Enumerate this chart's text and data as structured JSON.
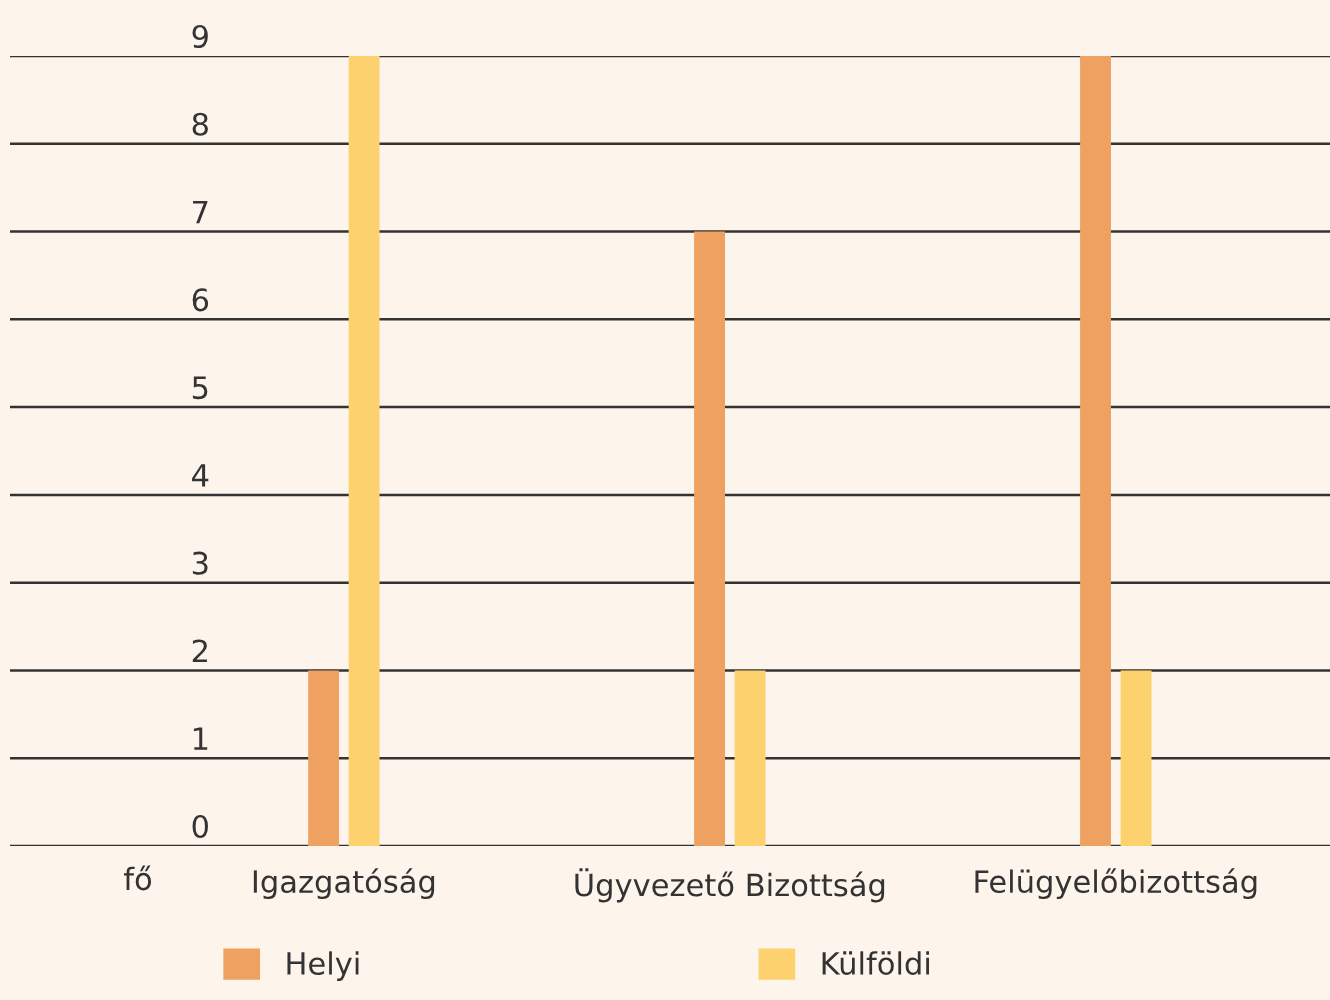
{
  "chart_data": {
    "type": "bar",
    "annotations": [
      "fő"
    ],
    "categories": [
      "Igazgatóság",
      "Ügyvezető Bizottság",
      "Felügyelőbizottság"
    ],
    "series": [
      {
        "name": "Helyi",
        "color": "#eea160",
        "values": [
          2,
          7,
          9
        ]
      },
      {
        "name": "Külföldi",
        "color": "#fdd26e",
        "values": [
          9,
          2,
          2
        ]
      }
    ],
    "ylim": [
      0,
      9
    ],
    "yticks": [
      0,
      1,
      2,
      3,
      4,
      5,
      6,
      7,
      8,
      9
    ],
    "grid": "y",
    "legend": "bottom"
  }
}
